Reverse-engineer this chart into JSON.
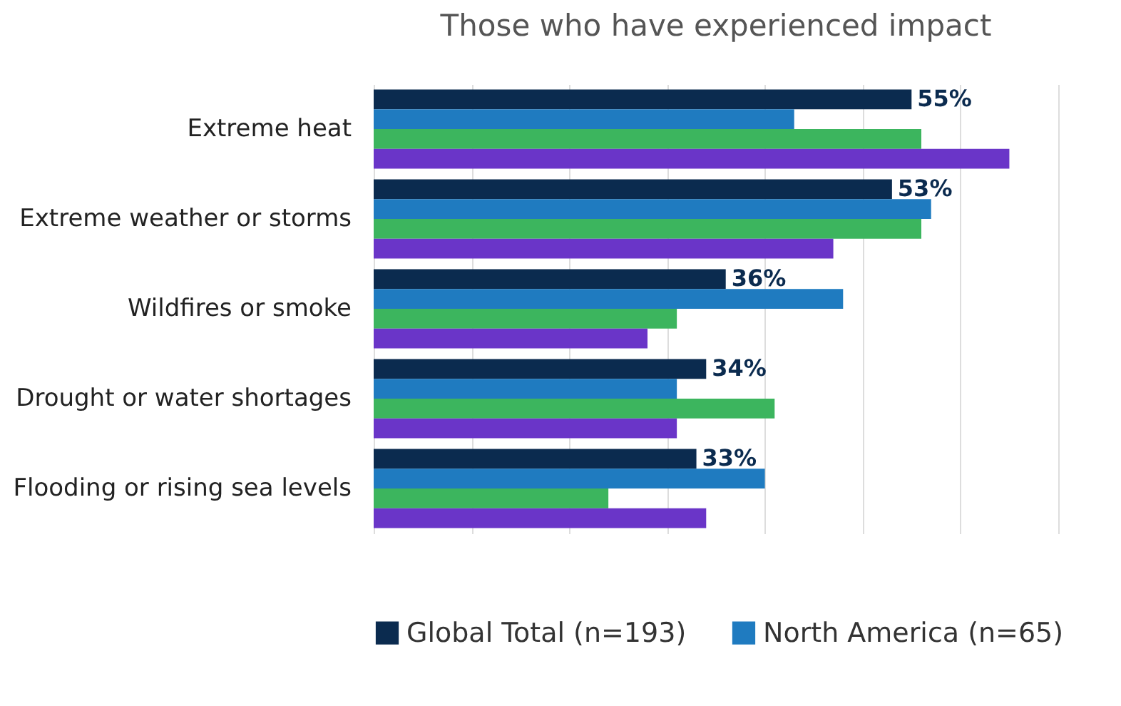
{
  "chart_data": {
    "type": "bar",
    "orientation": "horizontal",
    "title": "Those who have experienced impact",
    "categories": [
      "Extreme heat",
      "Extreme weather or storms",
      "Wildfires or smoke",
      "Drought or water shortages",
      "Flooding or rising sea levels"
    ],
    "series": [
      {
        "name": "Global Total (n=193)",
        "color": "#0b2b4f",
        "values": [
          55,
          53,
          36,
          34,
          33
        ],
        "value_labels": [
          "55%",
          "53%",
          "36%",
          "34%",
          "33%"
        ]
      },
      {
        "name": "North America (n=65)",
        "color": "#1f7bc0",
        "values": [
          43,
          57,
          48,
          31,
          40
        ]
      },
      {
        "color": "#3cb55e",
        "values": [
          56,
          56,
          31,
          41,
          24
        ]
      },
      {
        "color": "#6a35c8",
        "values": [
          65,
          47,
          28,
          31,
          34
        ]
      }
    ],
    "xlim": [
      0,
      70
    ],
    "xticks": [
      {
        "value": 0,
        "label": null
      },
      {
        "value": 10,
        "label": null
      },
      {
        "value": 20,
        "label": null
      },
      {
        "value": 30,
        "label": null
      },
      {
        "value": 40,
        "label": null
      },
      {
        "value": 50,
        "label": null
      },
      {
        "value": 60,
        "label": null
      },
      {
        "value": 70,
        "label": null
      }
    ],
    "grid": "x",
    "legend": "bottom",
    "tick_labels": "y"
  }
}
